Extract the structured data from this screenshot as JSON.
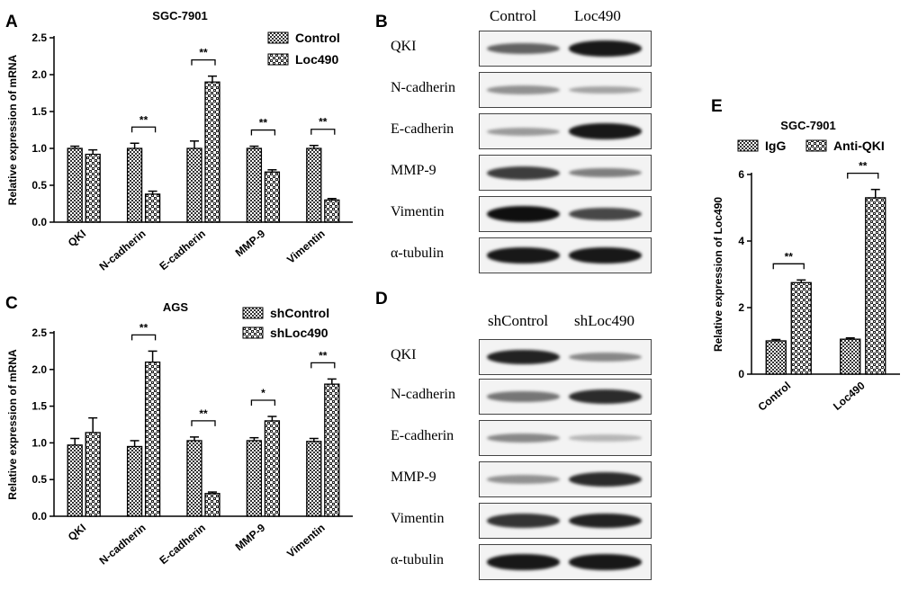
{
  "panels": {
    "A": "A",
    "B": "B",
    "C": "C",
    "D": "D",
    "E": "E"
  },
  "western_B": {
    "columns": [
      "Control",
      "Loc490"
    ],
    "rows": [
      {
        "label": "QKI",
        "bands": [
          0.55,
          0.95
        ]
      },
      {
        "label": "N-cadherin",
        "bands": [
          0.3,
          0.2
        ]
      },
      {
        "label": "E-cadherin",
        "bands": [
          0.25,
          0.95
        ]
      },
      {
        "label": "MMP-9",
        "bands": [
          0.75,
          0.4
        ]
      },
      {
        "label": "Vimentin",
        "bands": [
          1.0,
          0.7
        ]
      },
      {
        "label": "α-tubulin",
        "bands": [
          0.95,
          0.95
        ]
      }
    ]
  },
  "western_D": {
    "columns": [
      "shControl",
      "shLoc490"
    ],
    "rows": [
      {
        "label": "QKI",
        "bands": [
          0.9,
          0.35
        ]
      },
      {
        "label": "N-cadherin",
        "bands": [
          0.45,
          0.85
        ]
      },
      {
        "label": "E-cadherin",
        "bands": [
          0.35,
          0.1
        ]
      },
      {
        "label": "MMP-9",
        "bands": [
          0.3,
          0.85
        ]
      },
      {
        "label": "Vimentin",
        "bands": [
          0.8,
          0.9
        ]
      },
      {
        "label": "α-tubulin",
        "bands": [
          0.95,
          0.95
        ]
      }
    ]
  },
  "chart_data": [
    {
      "type": "bar",
      "title": "SGC-7901",
      "ylabel": "Relative expression of mRNA",
      "ylim": [
        0,
        2.5
      ],
      "yticks": [
        "0.0",
        "0.5",
        "1.0",
        "1.5",
        "2.0",
        "2.5"
      ],
      "categories": [
        "QKI",
        "N-cadherin",
        "E-cadherin",
        "MMP-9",
        "Vimentin"
      ],
      "series": [
        {
          "name": "Control",
          "values": [
            1.0,
            1.0,
            1.0,
            1.0,
            1.0
          ],
          "errors": [
            0.03,
            0.07,
            0.1,
            0.03,
            0.04
          ]
        },
        {
          "name": "Loc490",
          "values": [
            0.92,
            0.38,
            1.9,
            0.68,
            0.3
          ],
          "errors": [
            0.06,
            0.04,
            0.08,
            0.03,
            0.02
          ]
        }
      ],
      "significance": [
        "",
        "**",
        "**",
        "**",
        "**"
      ],
      "legend": "top-right"
    },
    {
      "type": "bar",
      "title": "AGS",
      "ylabel": "Relative expression of mRNA",
      "ylim": [
        0,
        2.5
      ],
      "yticks": [
        "0.0",
        "0.5",
        "1.0",
        "1.5",
        "2.0",
        "2.5"
      ],
      "categories": [
        "QKI",
        "N-cadherin",
        "E-cadherin",
        "MMP-9",
        "Vimentin"
      ],
      "series": [
        {
          "name": "shControl",
          "values": [
            0.97,
            0.95,
            1.03,
            1.03,
            1.02
          ],
          "errors": [
            0.09,
            0.08,
            0.05,
            0.04,
            0.04
          ]
        },
        {
          "name": "shLoc490",
          "values": [
            1.14,
            2.1,
            0.31,
            1.3,
            1.8
          ],
          "errors": [
            0.2,
            0.15,
            0.02,
            0.06,
            0.07
          ]
        }
      ],
      "significance": [
        "",
        "**",
        "**",
        "*",
        "**"
      ],
      "legend": "top-right"
    },
    {
      "type": "bar",
      "title": "SGC-7901",
      "ylabel": "Relative expression of Loc490",
      "ylim": [
        0,
        6
      ],
      "yticks": [
        "0",
        "2",
        "4",
        "6"
      ],
      "categories": [
        "Control",
        "Loc490"
      ],
      "series": [
        {
          "name": "IgG",
          "values": [
            1.0,
            1.05
          ],
          "errors": [
            0.04,
            0.04
          ]
        },
        {
          "name": "Anti-QKI",
          "values": [
            2.75,
            5.3
          ],
          "errors": [
            0.08,
            0.25
          ]
        }
      ],
      "significance": [
        "**",
        "**"
      ],
      "legend": "top"
    }
  ]
}
